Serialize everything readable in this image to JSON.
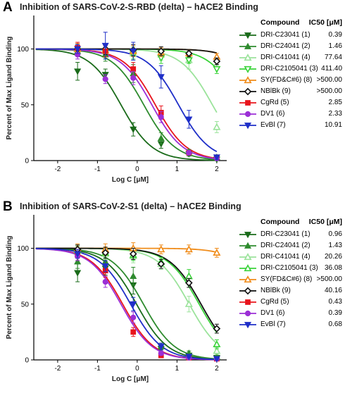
{
  "chart_data": [
    {
      "panel": "A",
      "type": "line",
      "title": "Inhibition of SARS-CoV-2-S-RBD (delta) – hACE2 Binding",
      "xlabel": "Log C [μM]",
      "ylabel": "Percent of Max Ligand Binding",
      "xlim": [
        -2.6,
        2.25
      ],
      "ylim": [
        0,
        130
      ],
      "xticks": [
        "-2",
        "-1",
        "0",
        "1",
        "2"
      ],
      "yticks": [
        "0",
        "50",
        "100"
      ],
      "legend_header": {
        "compound": "Compound",
        "ic50": "IC50 [μM]"
      },
      "x": [
        -1.5,
        -0.8,
        -0.1,
        0.6,
        1.3,
        2.0
      ],
      "series": [
        {
          "name": "DRI-C23041 (1)",
          "ic50": "0.39",
          "ic50_value": 0.39,
          "color": "#1a6b1a",
          "marker": "tri-down-filled",
          "values": [
            80,
            77,
            28,
            15,
            6,
            1
          ],
          "errors": [
            8,
            5,
            6,
            4,
            2,
            1
          ]
        },
        {
          "name": "DRI-C24041 (2)",
          "ic50": "1.46",
          "ic50_value": 1.46,
          "color": "#2e8b2e",
          "marker": "tri-up-filled",
          "values": [
            98,
            95,
            78,
            20,
            8,
            3
          ],
          "errors": [
            4,
            6,
            8,
            5,
            2,
            1
          ]
        },
        {
          "name": "DRI-C41041 (4)",
          "ic50": "77.64",
          "ic50_value": 77.64,
          "color": "#9be39b",
          "marker": "tri-up-open",
          "values": [
            100,
            98,
            96,
            95,
            90,
            30
          ],
          "errors": [
            5,
            5,
            6,
            5,
            8,
            5
          ]
        },
        {
          "name": "DRI-C2105041 (3)",
          "ic50": "411.40",
          "ic50_value": 411.4,
          "color": "#39d339",
          "marker": "tri-down-open",
          "values": [
            98,
            97,
            95,
            92,
            90,
            82
          ],
          "errors": [
            4,
            6,
            4,
            5,
            3,
            4
          ]
        },
        {
          "name": "SY(FD&C#6) (8)",
          "ic50": ">500.00",
          "ic50_value": 2000,
          "color": "#f08c1a",
          "marker": "tri-up-open",
          "values": [
            100,
            99,
            98,
            97,
            96,
            93
          ],
          "errors": [
            5,
            6,
            5,
            4,
            3,
            3
          ]
        },
        {
          "name": "NBlBk (9)",
          "ic50": ">500.00",
          "ic50_value": 2000,
          "color": "#111111",
          "marker": "diamond-open",
          "values": [
            100,
            100,
            99,
            98,
            96,
            89
          ],
          "errors": [
            4,
            5,
            5,
            4,
            3,
            3
          ]
        },
        {
          "name": "CgRd (5)",
          "ic50": "2.85",
          "ic50_value": 2.85,
          "color": "#e8141c",
          "marker": "square-filled",
          "values": [
            101,
            98,
            82,
            43,
            7,
            3
          ],
          "errors": [
            5,
            5,
            6,
            6,
            2,
            1
          ]
        },
        {
          "name": "DV1 (6)",
          "ic50": "2.33",
          "ic50_value": 2.33,
          "color": "#9b2fd6",
          "marker": "circle-filled",
          "values": [
            95,
            73,
            74,
            39,
            7,
            2
          ],
          "errors": [
            4,
            4,
            6,
            5,
            2,
            1
          ]
        },
        {
          "name": "EvBl (7)",
          "ic50": "10.91",
          "ic50_value": 10.91,
          "color": "#1f2fc8",
          "marker": "tri-down-filled",
          "values": [
            100,
            103,
            98,
            75,
            37,
            3
          ],
          "errors": [
            4,
            12,
            8,
            10,
            8,
            2
          ]
        }
      ]
    },
    {
      "panel": "B",
      "type": "line",
      "title": "Inhibition of SARS-CoV-2-S1 (delta) – hACE2 Binding",
      "xlabel": "Log C [μM]",
      "ylabel": "Percent of Max Ligand Binding",
      "xlim": [
        -2.6,
        2.25
      ],
      "ylim": [
        0,
        130
      ],
      "xticks": [
        "-2",
        "-1",
        "0",
        "1",
        "2"
      ],
      "yticks": [
        "0",
        "50",
        "100"
      ],
      "legend_header": {
        "compound": "Compound",
        "ic50": "IC50 [μM]"
      },
      "x": [
        -1.5,
        -0.8,
        -0.1,
        0.6,
        1.3,
        2.0
      ],
      "series": [
        {
          "name": "DRI-C23041 (1)",
          "ic50": "0.96",
          "ic50_value": 0.96,
          "color": "#1a6b1a",
          "marker": "tri-down-filled",
          "values": [
            78,
            82,
            67,
            10,
            4,
            2
          ],
          "errors": [
            8,
            6,
            8,
            3,
            1,
            1
          ]
        },
        {
          "name": "DRI-C24041 (2)",
          "ic50": "1.43",
          "ic50_value": 1.43,
          "color": "#2e8b2e",
          "marker": "tri-up-filled",
          "values": [
            88,
            88,
            75,
            12,
            6,
            3
          ],
          "errors": [
            6,
            5,
            8,
            3,
            2,
            1
          ]
        },
        {
          "name": "DRI-C41041 (4)",
          "ic50": "20.26",
          "ic50_value": 20.26,
          "color": "#9be39b",
          "marker": "tri-up-open",
          "values": [
            98,
            95,
            93,
            86,
            50,
            8
          ],
          "errors": [
            5,
            5,
            6,
            5,
            7,
            3
          ]
        },
        {
          "name": "DRI-C2105041 (3)",
          "ic50": "36.08",
          "ic50_value": 36.08,
          "color": "#39d339",
          "marker": "tri-up-open",
          "values": [
            98,
            96,
            94,
            88,
            75,
            14
          ],
          "errors": [
            4,
            5,
            5,
            4,
            6,
            4
          ]
        },
        {
          "name": "SY(FD&C#6) (8)",
          "ic50": ">500.00",
          "ic50_value": 2000,
          "color": "#f08c1a",
          "marker": "tri-up-open",
          "values": [
            100,
            99,
            100,
            99,
            99,
            96
          ],
          "errors": [
            4,
            5,
            5,
            4,
            4,
            4
          ]
        },
        {
          "name": "NBlBk (9)",
          "ic50": "40.16",
          "ic50_value": 40.16,
          "color": "#111111",
          "marker": "diamond-open",
          "values": [
            99,
            96,
            95,
            86,
            69,
            28
          ],
          "errors": [
            4,
            5,
            5,
            4,
            4,
            4
          ]
        },
        {
          "name": "CgRd (5)",
          "ic50": "0.43",
          "ic50_value": 0.43,
          "color": "#e8141c",
          "marker": "square-filled",
          "values": [
            94,
            80,
            25,
            4,
            2,
            1
          ],
          "errors": [
            5,
            6,
            4,
            2,
            1,
            1
          ]
        },
        {
          "name": "DV1 (6)",
          "ic50": "0.39",
          "ic50_value": 0.39,
          "color": "#9b2fd6",
          "marker": "circle-filled",
          "values": [
            93,
            70,
            38,
            6,
            2,
            1
          ],
          "errors": [
            4,
            5,
            5,
            2,
            1,
            1
          ]
        },
        {
          "name": "EvBl (7)",
          "ic50": "0.68",
          "ic50_value": 0.68,
          "color": "#1f2fc8",
          "marker": "tri-down-filled",
          "values": [
            95,
            84,
            50,
            12,
            3,
            1
          ],
          "errors": [
            4,
            5,
            6,
            3,
            1,
            1
          ]
        }
      ]
    }
  ]
}
